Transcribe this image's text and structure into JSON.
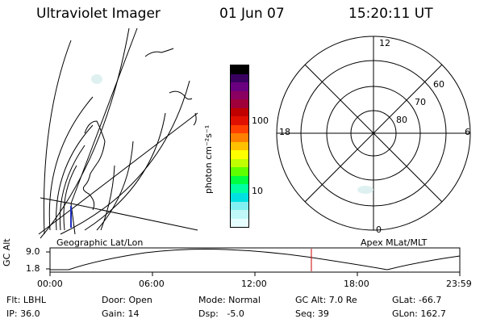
{
  "header": {
    "instrument": "Ultraviolet Imager",
    "date": "01 Jun 07",
    "time": "15:20:11 UT"
  },
  "left_panel": {
    "label": "Geographic Lat/Lon"
  },
  "right_panel": {
    "label": "Apex MLat/MLT",
    "mlt_labels": {
      "top": "12",
      "left": "18",
      "right": "6",
      "bottom": "0"
    },
    "lat_labels": [
      "60",
      "70",
      "80"
    ]
  },
  "colorbar": {
    "unit_label": "photon cm⁻²s⁻¹",
    "ticks": [
      "100",
      "10"
    ],
    "colors": [
      "#000000",
      "#3a0060",
      "#6a0080",
      "#8a0060",
      "#a0003a",
      "#c00000",
      "#e01000",
      "#ff4000",
      "#ff8000",
      "#ffc000",
      "#ffff00",
      "#c0ff00",
      "#60ff00",
      "#00ff40",
      "#00ffa0",
      "#00e0e0",
      "#80f0f0",
      "#c0f8f8",
      "#e8ffff"
    ]
  },
  "alt_plot": {
    "ylabel": "GC Alt",
    "yticks": [
      "9.0",
      "1.8"
    ],
    "xticks": [
      "00:00",
      "06:00",
      "12:00",
      "18:00",
      "23:59"
    ],
    "marker_color": "#cc0000"
  },
  "info": {
    "flt": "Flt: LBHL",
    "ip": "IP: 36.0",
    "door": "Door: Open",
    "gain": "Gain: 14",
    "mode": "Mode: Normal",
    "dsp": "Dsp:   -5.0",
    "gcalt": "GC Alt: 7.0 Re",
    "seq": "Seq: 39",
    "glat": "GLat: -66.7",
    "glon": "GLon: 162.7"
  }
}
